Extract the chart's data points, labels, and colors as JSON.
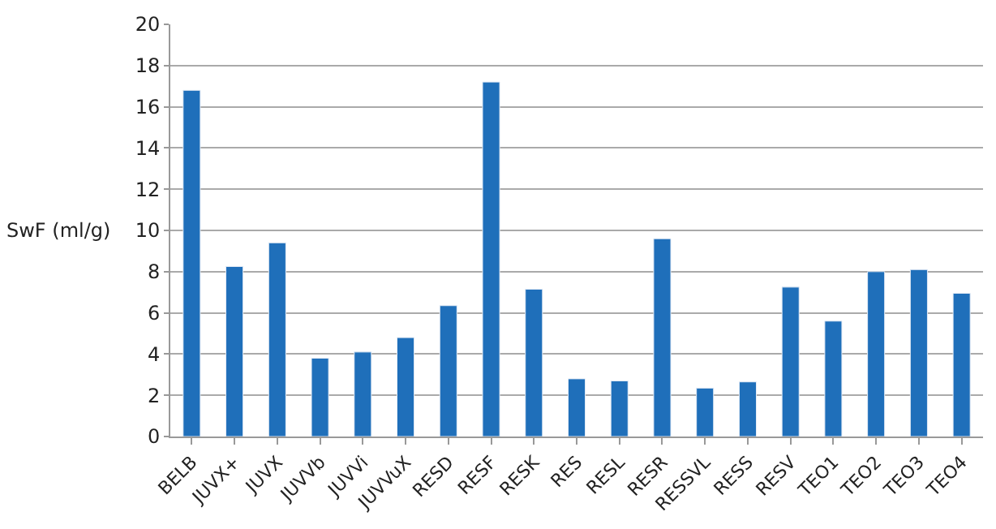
{
  "chart_data": {
    "type": "bar",
    "ylabel": "SwF (ml/g)",
    "categories": [
      "BELB",
      "JUVX+",
      "JUVX",
      "JUVVb",
      "JUVVi",
      "JUVVuX",
      "RESD",
      "RESF",
      "RESK",
      "RES",
      "RESL",
      "RESR",
      "RESSVL",
      "RESS",
      "RESV",
      "TEO1",
      "TEO2",
      "TEO3",
      "TEO4"
    ],
    "values": [
      16.8,
      8.25,
      9.4,
      3.8,
      4.1,
      4.8,
      6.35,
      17.2,
      7.15,
      2.8,
      2.7,
      9.6,
      2.35,
      2.65,
      7.25,
      5.6,
      8.0,
      8.1,
      6.95
    ],
    "color": "#1f6fba",
    "ylim": [
      0,
      20
    ],
    "yticks": [
      0,
      2,
      4,
      6,
      8,
      10,
      12,
      14,
      16,
      18,
      20
    ],
    "grid": "y"
  }
}
